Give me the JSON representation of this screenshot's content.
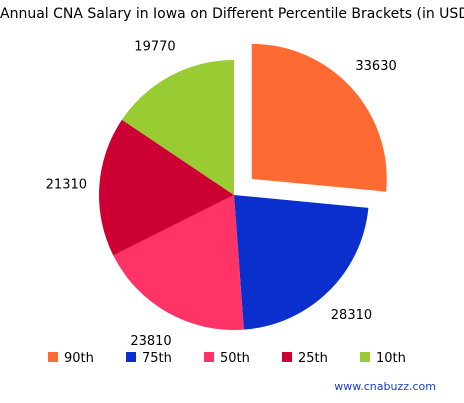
{
  "chart_data": {
    "type": "pie",
    "title": "Annual CNA Salary in Iowa on Different Percentile Brackets (in USD)",
    "slices": [
      {
        "label": "90th",
        "value": 33630,
        "color": "#ff6a33",
        "exploded": true
      },
      {
        "label": "75th",
        "value": 28310,
        "color": "#0a2fcc"
      },
      {
        "label": "50th",
        "value": 23810,
        "color": "#ff3366"
      },
      {
        "label": "25th",
        "value": 21310,
        "color": "#cc0033"
      },
      {
        "label": "10th",
        "value": 19770,
        "color": "#99cc33"
      }
    ],
    "legend_position": "bottom"
  },
  "footer": {
    "text": "www.cnabuzz.com"
  }
}
